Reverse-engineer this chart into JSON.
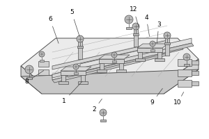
{
  "bg_color": "#ffffff",
  "fig_bg": "#ffffff",
  "line_color": "#505050",
  "label_color": "#000000",
  "label_fontsize": 6.5,
  "base_color": "#e8e8e8",
  "base_edge": "#606060",
  "rail_top_color": "#d8d8d8",
  "rail_side_color": "#c0c0c0",
  "clamp_color": "#d0d0d0",
  "bolt_color": "#b8b8b8",
  "plate_top_color": "#f0f0f0",
  "plate_side_color": "#d8d8d8"
}
